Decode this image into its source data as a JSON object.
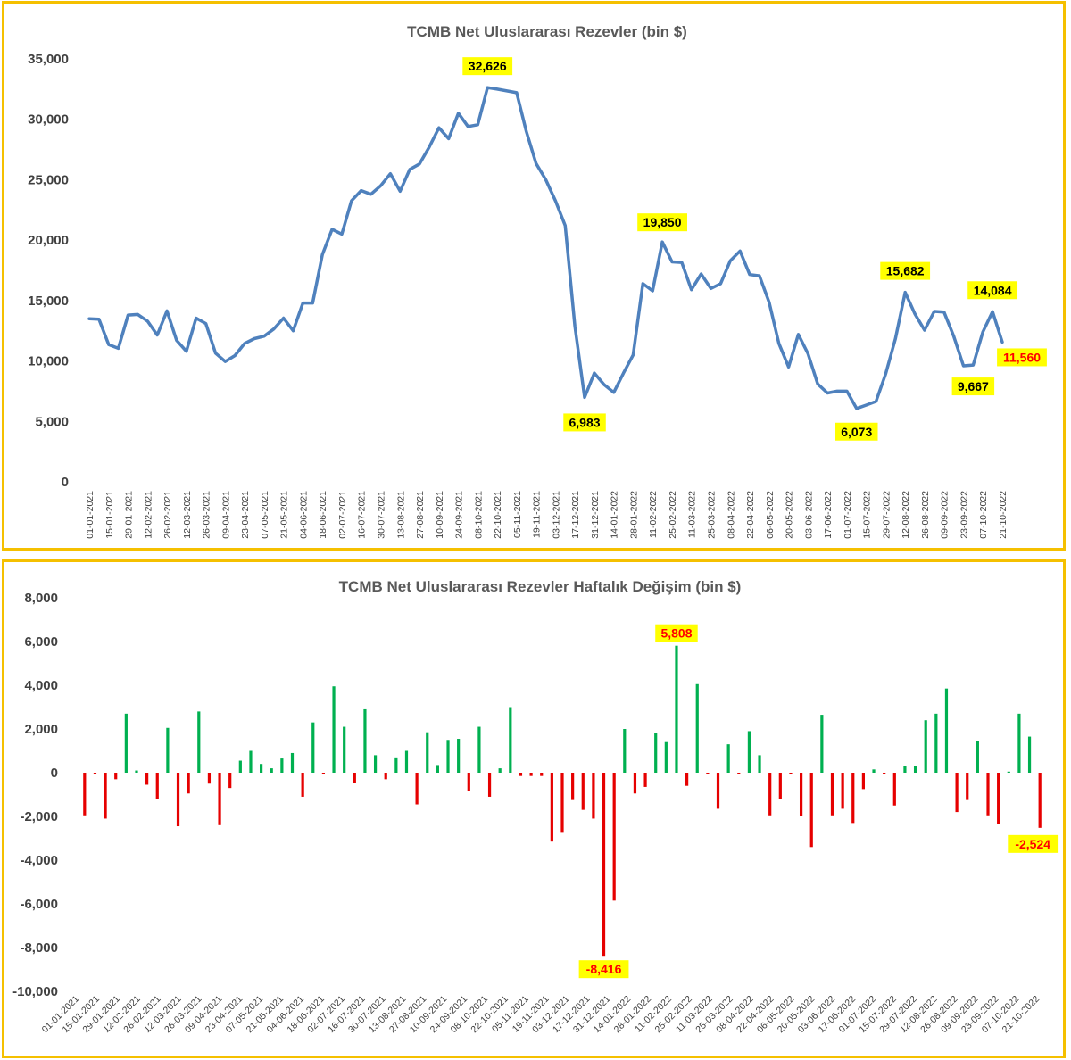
{
  "chart_data": [
    {
      "type": "line",
      "title": "TCMB Net Uluslararası Rezevler (bin $)",
      "ylim": [
        0,
        35000
      ],
      "yticks": [
        0,
        5000,
        10000,
        15000,
        20000,
        25000,
        30000,
        35000
      ],
      "ytick_labels": [
        "0",
        "5,000",
        "10,000",
        "15,000",
        "20,000",
        "25,000",
        "30,000",
        "35,000"
      ],
      "grid": false,
      "legend": "none",
      "x_labels": [
        "01-01-2021",
        "15-01-2021",
        "29-01-2021",
        "12-02-2021",
        "26-02-2021",
        "12-03-2021",
        "26-03-2021",
        "09-04-2021",
        "23-04-2021",
        "07-05-2021",
        "21-05-2021",
        "04-06-2021",
        "18-06-2021",
        "02-07-2021",
        "16-07-2021",
        "30-07-2021",
        "13-08-2021",
        "27-08-2021",
        "10-09-2021",
        "24-09-2021",
        "08-10-2021",
        "22-10-2021",
        "05-11-2021",
        "19-11-2021",
        "03-12-2021",
        "17-12-2021",
        "31-12-2021",
        "14-01-2022",
        "28-01-2022",
        "11-02-2022",
        "25-02-2022",
        "11-03-2022",
        "25-03-2022",
        "08-04-2022",
        "22-04-2022",
        "06-05-2022",
        "20-05-2022",
        "03-06-2022",
        "17-06-2022",
        "01-07-2022",
        "15-07-2022",
        "29-07-2022",
        "12-08-2022",
        "26-08-2022",
        "09-09-2022",
        "23-09-2022",
        "07-10-2022",
        "21-10-2022"
      ],
      "values": [
        13500,
        13450,
        11350,
        11050,
        13800,
        13850,
        13300,
        12150,
        14150,
        11700,
        10800,
        13550,
        13100,
        10650,
        9950,
        10450,
        11450,
        11850,
        12050,
        12650,
        13550,
        12500,
        14800,
        14800,
        18800,
        20900,
        20500,
        23250,
        24100,
        23800,
        24500,
        25500,
        24050,
        25850,
        26300,
        27700,
        29300,
        28400,
        30500,
        29400,
        29550,
        32626,
        32500,
        32350,
        32200,
        29000,
        26350,
        25000,
        23250,
        21200,
        12900,
        6983,
        9000,
        8050,
        7400,
        9000,
        10500,
        16400,
        15800,
        19850,
        18200,
        18150,
        15900,
        17200,
        16000,
        16400,
        18300,
        19100,
        17150,
        17050,
        14850,
        11450,
        9500,
        12200,
        10600,
        8100,
        7350,
        7500,
        7500,
        6073,
        6350,
        6650,
        8950,
        11850,
        15682,
        13900,
        12550,
        14100,
        14050,
        12050,
        9600,
        9667,
        12400,
        14084,
        11560
      ],
      "annotations": [
        {
          "index": 41,
          "label": "32,626",
          "color": "#000000"
        },
        {
          "index": 51,
          "label": "6,983",
          "color": "#000000"
        },
        {
          "index": 59,
          "label": "19,850",
          "color": "#000000"
        },
        {
          "index": 79,
          "label": "6,073",
          "color": "#000000"
        },
        {
          "index": 84,
          "label": "15,682",
          "color": "#000000"
        },
        {
          "index": 91,
          "label": "9,667",
          "color": "#000000"
        },
        {
          "index": 93,
          "label": "14,084",
          "color": "#000000"
        },
        {
          "index": 94,
          "label": "11,560",
          "color": "#ff0000"
        }
      ],
      "colors": {
        "line": "#4f81bd",
        "label_bg": "#ffff00"
      }
    },
    {
      "type": "bar",
      "title": "TCMB Net Uluslararası Rezevler Haftalık Değişim (bin $)",
      "ylim": [
        -10000,
        8000
      ],
      "yticks": [
        -10000,
        -8000,
        -6000,
        -4000,
        -2000,
        0,
        2000,
        4000,
        6000,
        8000
      ],
      "ytick_labels": [
        "-10,000",
        "-8,000",
        "-6,000",
        "-4,000",
        "-2,000",
        "0",
        "2,000",
        "4,000",
        "6,000",
        "8,000"
      ],
      "grid": false,
      "legend": "none",
      "x_labels": [
        "01-01-2021",
        "15-01-2021",
        "29-01-2021",
        "12-02-2021",
        "26-02-2021",
        "12-03-2021",
        "26-03-2021",
        "09-04-2021",
        "23-04-2021",
        "07-05-2021",
        "21-05-2021",
        "04-06-2021",
        "18-06-2021",
        "02-07-2021",
        "16-07-2021",
        "30-07-2021",
        "13-08-2021",
        "27-08-2021",
        "10-09-2021",
        "24-09-2021",
        "08-10-2021",
        "22-10-2021",
        "05-11-2021",
        "19-11-2021",
        "03-12-2021",
        "17-12-2021",
        "31-12-2021",
        "14-01-2022",
        "28-01-2022",
        "11-02-2022",
        "25-02-2022",
        "11-03-2022",
        "25-03-2022",
        "08-04-2022",
        "22-04-2022",
        "06-05-2022",
        "20-05-2022",
        "03-06-2022",
        "17-06-2022",
        "01-07-2022",
        "15-07-2022",
        "29-07-2022",
        "12-08-2022",
        "26-08-2022",
        "09-09-2022",
        "23-09-2022",
        "07-10-2022",
        "21-10-2022"
      ],
      "values": [
        -1950,
        -50,
        -2100,
        -300,
        2700,
        100,
        -550,
        -1200,
        2050,
        -2450,
        -950,
        2800,
        -500,
        -2400,
        -700,
        550,
        1000,
        400,
        200,
        650,
        900,
        -1100,
        2300,
        -50,
        3950,
        2100,
        -450,
        2900,
        800,
        -300,
        700,
        1000,
        -1450,
        1850,
        350,
        1500,
        1550,
        -850,
        2100,
        -1100,
        200,
        3000,
        -150,
        -150,
        -150,
        -3150,
        -2750,
        -1250,
        -1700,
        -2100,
        -8416,
        -5850,
        2000,
        -950,
        -650,
        1800,
        1400,
        5808,
        -600,
        4050,
        -50,
        -1650,
        1300,
        -50,
        1900,
        800,
        -1950,
        -1200,
        -50,
        -2000,
        -3400,
        2650,
        -1950,
        -1650,
        -2300,
        -750,
        150,
        -50,
        -1500,
        300,
        300,
        2400,
        2700,
        3850,
        -1800,
        -1250,
        1450,
        -1950,
        -2350,
        50,
        2700,
        1650,
        -2524
      ],
      "colors": {
        "positive": "#00b050",
        "negative": "#e60000"
      },
      "annotations": [
        {
          "index": 50,
          "label": "-8,416",
          "color": "#ff0000"
        },
        {
          "index": 57,
          "label": "5,808",
          "color": "#ff0000"
        },
        {
          "index": 92,
          "label": "-2,524",
          "color": "#ff0000"
        }
      ]
    }
  ]
}
